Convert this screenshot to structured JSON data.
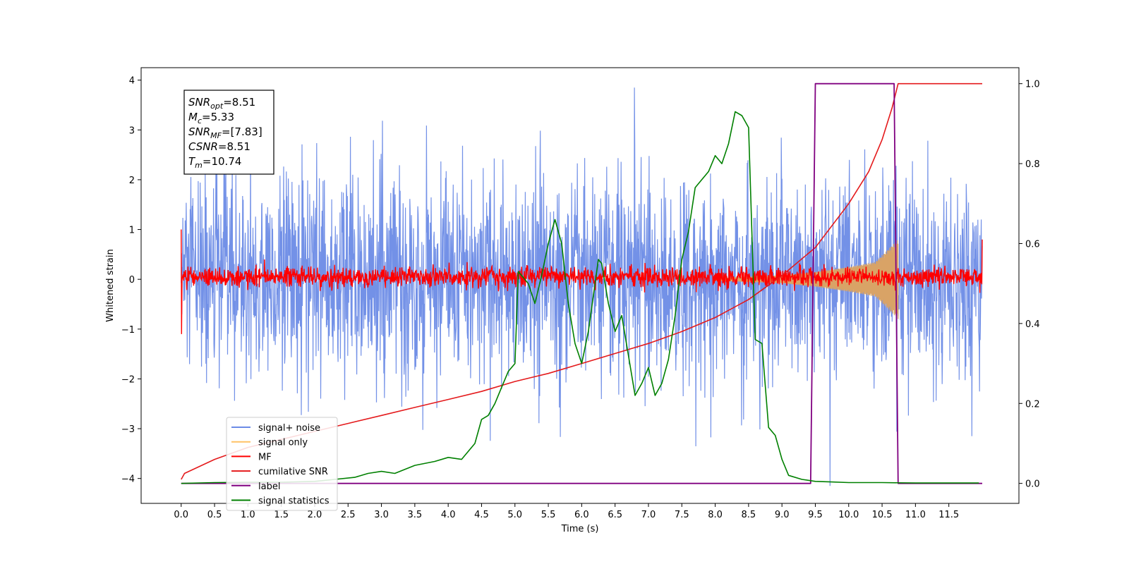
{
  "chart_data": {
    "type": "line",
    "title": "",
    "xlabel": "Time (s)",
    "ylabel": "Whitened strain",
    "xlim": [
      -0.6,
      12.55
    ],
    "ylim": [
      -4.5,
      4.25
    ],
    "y2lim": [
      -0.05,
      1.04
    ],
    "x_ticks": [
      0.0,
      0.5,
      1.0,
      1.5,
      2.0,
      2.5,
      3.0,
      3.5,
      4.0,
      4.5,
      5.0,
      5.5,
      6.0,
      6.5,
      7.0,
      7.5,
      8.0,
      8.5,
      9.0,
      9.5,
      10.0,
      10.5,
      11.0,
      11.5
    ],
    "x_tick_labels": [
      "0.0",
      "0.5",
      "1.0",
      "1.5",
      "2.0",
      "2.5",
      "3.0",
      "3.5",
      "4.0",
      "4.5",
      "5.0",
      "5.5",
      "6.0",
      "6.5",
      "7.0",
      "7.5",
      "8.0",
      "8.5",
      "9.0",
      "9.5",
      "10.0",
      "10.5",
      "11.0",
      "11.5"
    ],
    "y_ticks": [
      -4,
      -3,
      -2,
      -1,
      0,
      1,
      2,
      3,
      4
    ],
    "y_tick_labels": [
      "−4",
      "−3",
      "−2",
      "−1",
      "0",
      "1",
      "2",
      "3",
      "4"
    ],
    "y2_ticks": [
      0.0,
      0.2,
      0.4,
      0.6,
      0.8,
      1.0
    ],
    "y2_tick_labels": [
      "0.0",
      "0.2",
      "0.4",
      "0.6",
      "0.8",
      "1.0"
    ],
    "grid": false,
    "legend_position": "lower-left",
    "legend": [
      {
        "label": "signal+ noise",
        "color": "#6b8be6"
      },
      {
        "label": "signal only",
        "color": "#ffc266"
      },
      {
        "label": "MF",
        "color": "#ff0000"
      },
      {
        "label": "cumilative SNR",
        "color": "#e41a1c"
      },
      {
        "label": "label",
        "color": "#800080"
      },
      {
        "label": "signal statistics",
        "color": "#008000"
      }
    ],
    "info_box": {
      "lines": [
        {
          "sym": "SNR",
          "sub": "opt",
          "val": "=8.51"
        },
        {
          "sym": "M",
          "sub": "c",
          "val": "=5.33"
        },
        {
          "sym": "SNR",
          "sub": "MF",
          "val": "=[7.83]"
        },
        {
          "sym": "CSNR",
          "sub": "",
          "val": "=8.51"
        },
        {
          "sym": "T",
          "sub": "m",
          "val": "=10.74"
        }
      ]
    },
    "series": [
      {
        "name": "signal+ noise",
        "axis": "left",
        "color": "#6b8be6",
        "style": "noise",
        "x_range": [
          0.0,
          12.0
        ],
        "amplitude_sd": 1.0,
        "y_extremes": [
          3.85,
          -4.15
        ]
      },
      {
        "name": "signal only",
        "axis": "left",
        "color": "#d9a366",
        "style": "chirp",
        "x_range": [
          8.0,
          10.74
        ],
        "envelope": [
          [
            8.0,
            0.03
          ],
          [
            9.0,
            0.08
          ],
          [
            9.5,
            0.15
          ],
          [
            10.0,
            0.25
          ],
          [
            10.4,
            0.35
          ],
          [
            10.74,
            0.8
          ]
        ]
      },
      {
        "name": "MF",
        "axis": "left",
        "color": "#ff0000",
        "style": "noise",
        "x_range": [
          0.0,
          12.0
        ],
        "amplitude_sd": 0.1,
        "y_extremes": [
          1.0,
          -1.1
        ]
      },
      {
        "name": "cumilative SNR",
        "axis": "right",
        "color": "#e41a1c",
        "x": [
          0.0,
          0.05,
          0.5,
          1.0,
          1.5,
          2.0,
          2.5,
          3.0,
          3.5,
          4.0,
          4.5,
          5.0,
          5.5,
          6.0,
          6.5,
          7.0,
          7.5,
          8.0,
          8.5,
          9.0,
          9.5,
          10.0,
          10.3,
          10.5,
          10.65,
          10.74,
          12.0
        ],
        "y": [
          0.01,
          0.025,
          0.06,
          0.09,
          0.11,
          0.13,
          0.15,
          0.17,
          0.19,
          0.21,
          0.23,
          0.255,
          0.275,
          0.3,
          0.325,
          0.35,
          0.38,
          0.415,
          0.46,
          0.52,
          0.59,
          0.7,
          0.78,
          0.86,
          0.94,
          1.0,
          1.0
        ]
      },
      {
        "name": "label",
        "axis": "right",
        "color": "#800080",
        "x": [
          0.0,
          9.43,
          9.5,
          10.68,
          10.74,
          12.0
        ],
        "y": [
          0.0,
          0.0,
          1.0,
          1.0,
          0.0,
          0.0
        ]
      },
      {
        "name": "signal statistics",
        "axis": "right",
        "color": "#008000",
        "x": [
          0.0,
          0.5,
          1.0,
          1.5,
          2.0,
          2.3,
          2.6,
          2.8,
          3.0,
          3.2,
          3.5,
          3.8,
          4.0,
          4.2,
          4.4,
          4.5,
          4.6,
          4.7,
          4.8,
          4.9,
          5.0,
          5.05,
          5.1,
          5.2,
          5.3,
          5.4,
          5.5,
          5.6,
          5.7,
          5.8,
          5.9,
          6.0,
          6.1,
          6.2,
          6.25,
          6.3,
          6.4,
          6.5,
          6.6,
          6.7,
          6.8,
          6.9,
          7.0,
          7.1,
          7.2,
          7.3,
          7.4,
          7.5,
          7.6,
          7.7,
          7.8,
          7.9,
          8.0,
          8.1,
          8.2,
          8.3,
          8.4,
          8.5,
          8.6,
          8.7,
          8.8,
          8.9,
          9.0,
          9.1,
          9.3,
          9.5,
          9.7,
          10.0,
          10.5,
          11.0,
          11.5,
          11.95
        ],
        "y": [
          0.0,
          0.002,
          0.003,
          0.003,
          0.005,
          0.01,
          0.015,
          0.025,
          0.03,
          0.025,
          0.045,
          0.055,
          0.065,
          0.06,
          0.1,
          0.16,
          0.17,
          0.2,
          0.24,
          0.28,
          0.3,
          0.53,
          0.52,
          0.5,
          0.45,
          0.52,
          0.6,
          0.66,
          0.6,
          0.45,
          0.35,
          0.3,
          0.38,
          0.5,
          0.56,
          0.55,
          0.45,
          0.38,
          0.42,
          0.32,
          0.22,
          0.25,
          0.29,
          0.22,
          0.25,
          0.31,
          0.42,
          0.56,
          0.63,
          0.74,
          0.76,
          0.78,
          0.82,
          0.8,
          0.85,
          0.93,
          0.92,
          0.89,
          0.36,
          0.35,
          0.14,
          0.12,
          0.06,
          0.02,
          0.01,
          0.005,
          0.004,
          0.002,
          0.002,
          0.001,
          0.001,
          0.001
        ]
      }
    ]
  }
}
